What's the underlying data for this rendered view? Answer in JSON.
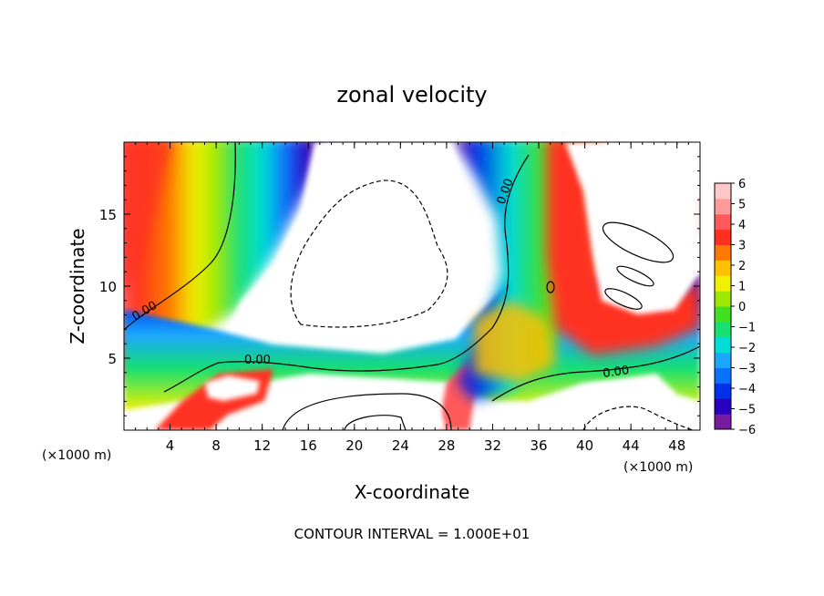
{
  "chart_data": {
    "type": "heatmap",
    "title": "zonal velocity",
    "xlabel": "X-coordinate",
    "ylabel": "Z-coordinate",
    "x_unit": "(×1000 m)",
    "x_unit_right": "(×1000 m)",
    "xlim": [
      0,
      50
    ],
    "ylim": [
      0,
      20
    ],
    "x_ticks": [
      "4",
      "8",
      "12",
      "16",
      "20",
      "24",
      "28",
      "32",
      "36",
      "40",
      "44",
      "48"
    ],
    "y_ticks": [
      "5",
      "10",
      "15"
    ],
    "footer": "CONTOUR INTERVAL = 1.000E+01",
    "colorbar": {
      "ticks": [
        "6",
        "5",
        "4",
        "3",
        "2",
        "1",
        "0",
        "−1",
        "−2",
        "−3",
        "−4",
        "−5",
        "−6"
      ],
      "range": [
        -6,
        6
      ],
      "colors": [
        "#7a1aa0",
        "#2a00c0",
        "#0030e8",
        "#0a72ff",
        "#1aa8ff",
        "#00ddd8",
        "#18e070",
        "#40e020",
        "#a0e800",
        "#f0f000",
        "#ffc000",
        "#ff7800",
        "#ff3020",
        "#ff5a5a",
        "#ff9a9a",
        "#ffc8c8"
      ]
    },
    "contour_labels": [
      "0.00",
      "0.00",
      "0.00",
      "0.00"
    ]
  }
}
